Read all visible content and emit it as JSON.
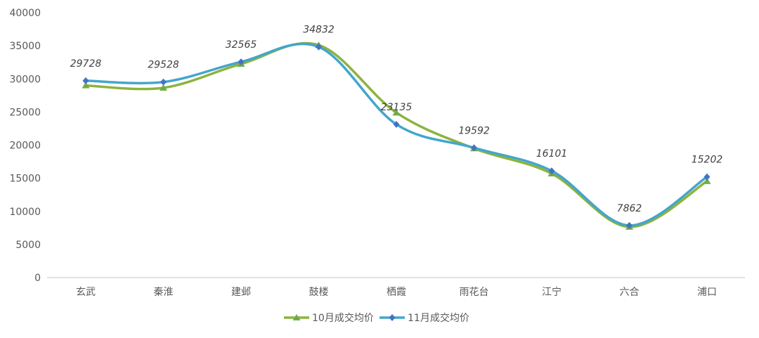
{
  "chart_data": {
    "type": "line",
    "title": "",
    "xlabel": "",
    "ylabel": "",
    "categories": [
      "玄武",
      "秦淮",
      "建邺",
      "鼓楼",
      "栖霞",
      "雨花台",
      "江宁",
      "六合",
      "浦口"
    ],
    "ylim": [
      0,
      40000
    ],
    "yticks": [
      0,
      5000,
      10000,
      15000,
      20000,
      25000,
      30000,
      35000,
      40000
    ],
    "grid": false,
    "legend_position": "bottom",
    "series": [
      {
        "name": "10月成交均价",
        "color": "#8db33e",
        "marker_color": "#70ad47",
        "marker": "triangle",
        "values": [
          29000,
          28650,
          32250,
          35100,
          24900,
          19500,
          15700,
          7650,
          14550
        ],
        "data_labels": false
      },
      {
        "name": "11月成交均价",
        "color": "#43a6cc",
        "marker_color": "#4472c4",
        "marker": "diamond",
        "values": [
          29728,
          29528,
          32565,
          34832,
          23135,
          19592,
          16101,
          7862,
          15202
        ],
        "data_labels": true
      }
    ]
  }
}
